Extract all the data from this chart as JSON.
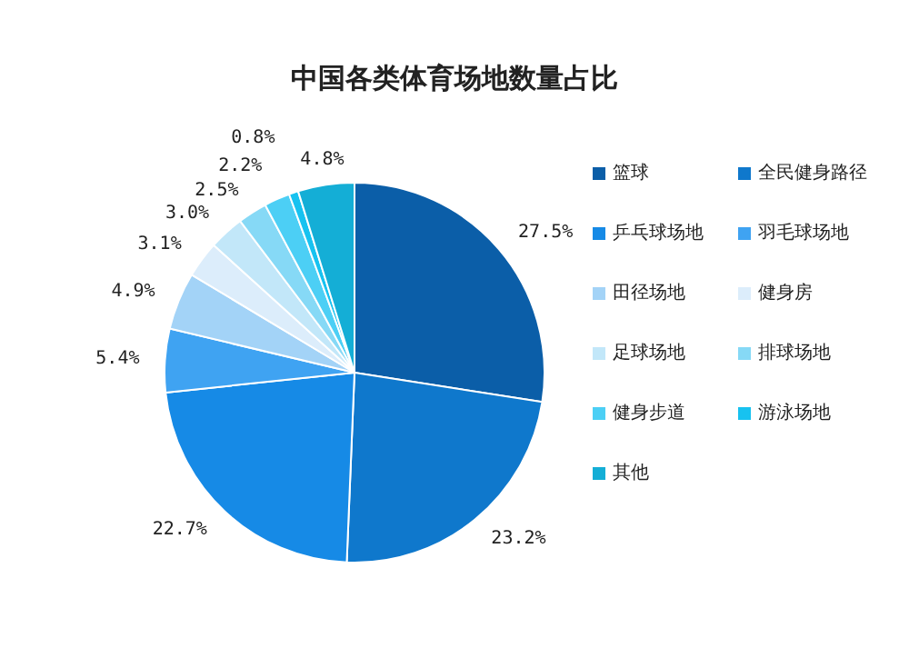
{
  "chart_data": {
    "type": "pie",
    "title": "中国各类体育场地数量占比",
    "categories": [
      "篮球",
      "全民健身路径",
      "乒乓球场地",
      "羽毛球场地",
      "田径场地",
      "健身房",
      "足球场地",
      "排球场地",
      "健身步道",
      "游泳场地",
      "其他"
    ],
    "values": [
      27.5,
      23.2,
      22.7,
      5.4,
      4.9,
      3.1,
      3.0,
      2.5,
      2.2,
      0.8,
      4.8
    ],
    "value_labels": [
      "27.5%",
      "23.2%",
      "22.7%",
      "5.4%",
      "4.9%",
      "3.1%",
      "3.0%",
      "2.5%",
      "2.2%",
      "0.8%",
      "4.8%"
    ],
    "colors": [
      "#0b5ea8",
      "#0f78cc",
      "#168ae6",
      "#3fa3f2",
      "#a3d3f7",
      "#dcedfb",
      "#c2e7f9",
      "#86d9f6",
      "#4ccff5",
      "#17c2f0",
      "#14aed6"
    ],
    "legend": "right"
  }
}
